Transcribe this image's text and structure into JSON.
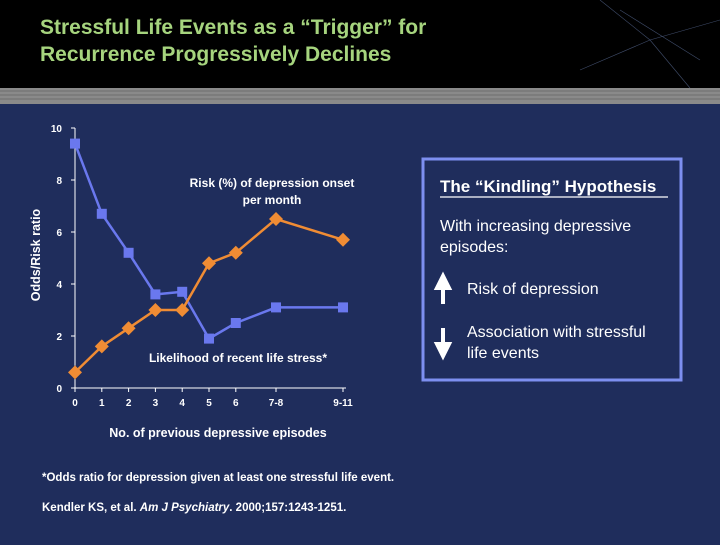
{
  "title_lines": [
    "Stressful Life Events as a “Trigger” for",
    "Recurrence Progressively Declines"
  ],
  "chart_data": {
    "type": "line",
    "x_label": "No. of previous depressive episodes",
    "y_label": "Odds/Risk ratio",
    "x": [
      0,
      1,
      2,
      3,
      4,
      5,
      6,
      7.5,
      10
    ],
    "xlim": [
      0,
      10
    ],
    "xticks": [
      0,
      1,
      2,
      3,
      4,
      5,
      6,
      {
        "value": 7.5,
        "label": "7-8"
      },
      {
        "value": 10,
        "label": "9-11"
      }
    ],
    "ylim": [
      0,
      10
    ],
    "yticks": [
      0,
      2,
      4,
      6,
      8,
      10
    ],
    "series": [
      {
        "name": "Likelihood of recent life stress*",
        "color": "#6a78ee",
        "marker": "square",
        "values": [
          9.4,
          6.7,
          5.2,
          3.6,
          3.7,
          1.9,
          2.5,
          3.1,
          3.1
        ]
      },
      {
        "name": "Risk (%) of depression onset per month",
        "color": "#f08c34",
        "marker": "diamond",
        "values": [
          0.6,
          1.6,
          2.3,
          3.0,
          3.0,
          4.8,
          5.2,
          6.5,
          5.7
        ]
      }
    ]
  },
  "sidebar": {
    "title": "The “Kindling” Hypothesis",
    "intro": "With increasing depressive episodes:",
    "items": [
      "Risk of depression",
      "Association with stressful life events"
    ]
  },
  "footnote": "*Odds ratio for depression given at least one stressful life event.",
  "citation": {
    "authors": "Kendler KS, et al.",
    "journal": "Am J Psychiatry",
    "details": ". 2000;157:1243-1251."
  }
}
